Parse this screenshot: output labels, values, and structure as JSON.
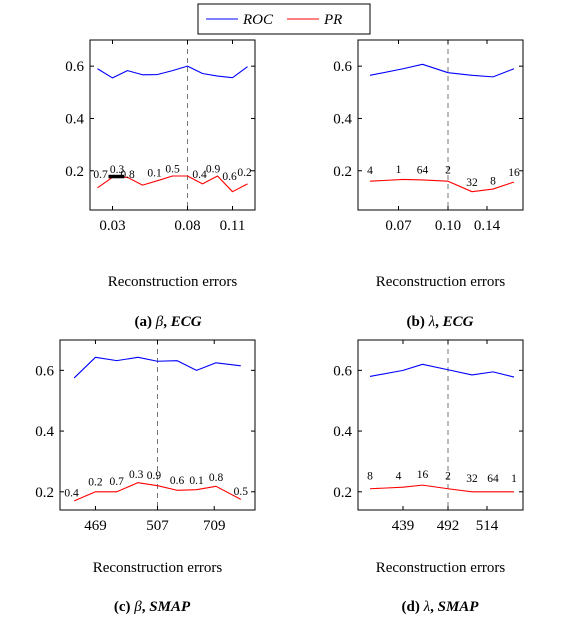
{
  "legend": {
    "entries": [
      {
        "name": "ROC",
        "color": "#0000ff"
      },
      {
        "name": "PR",
        "color": "#ff0000"
      }
    ]
  },
  "chart_data": [
    {
      "type": "line",
      "caption": {
        "tag": "(a)",
        "symbol": "β",
        "sep": ", ",
        "name": "ECG"
      },
      "xlabel": "Reconstruction errors",
      "ylabel": "",
      "xlim": [
        0.015,
        0.125
      ],
      "ylim": [
        0.05,
        0.7
      ],
      "yticks": [
        0.2,
        0.4,
        0.6
      ],
      "yticklabels": [
        "0.2",
        "0.4",
        "0.6"
      ],
      "xticks": [
        0.03,
        0.08,
        0.11
      ],
      "xticklabels": [
        "0.03",
        "0.08",
        "0.11"
      ],
      "dashed_x": 0.08,
      "x": [
        0.02,
        0.03,
        0.04,
        0.05,
        0.06,
        0.07,
        0.08,
        0.09,
        0.1,
        0.11,
        0.12
      ],
      "series": [
        {
          "name": "ROC",
          "values": [
            0.59,
            0.555,
            0.583,
            0.567,
            0.568,
            0.583,
            0.6,
            0.572,
            0.562,
            0.556,
            0.598
          ]
        },
        {
          "name": "PR",
          "values": [
            0.135,
            0.175,
            0.175,
            0.145,
            0.162,
            0.18,
            0.18,
            0.15,
            0.18,
            0.12,
            0.15
          ]
        }
      ],
      "point_labels": [
        "0.7",
        "0.3",
        "0.8",
        "0.1",
        "0.5",
        "0.4",
        "0.9",
        "0.6",
        "0.2"
      ],
      "point_label_x": [
        0.022,
        0.033,
        0.04,
        0.058,
        0.07,
        0.088,
        0.097,
        0.108,
        0.118
      ],
      "point_label_y": [
        0.172,
        0.192,
        0.172,
        0.178,
        0.193,
        0.172,
        0.193,
        0.165,
        0.18
      ],
      "highlight_segment": [
        0.03,
        0.035,
        0.178
      ]
    },
    {
      "type": "line",
      "caption": {
        "tag": "(b)",
        "symbol": "λ",
        "sep": ", ",
        "name": "ECG"
      },
      "xlabel": "Reconstruction errors",
      "ylabel": "",
      "xlim": [
        0,
        1.1
      ],
      "ylim": [
        0.05,
        0.7
      ],
      "yticks": [
        0.2,
        0.4,
        0.6
      ],
      "yticklabels": [
        "0.2",
        "0.4",
        "0.6"
      ],
      "xticks": [
        0.27,
        0.6,
        0.86
      ],
      "xticklabels": [
        "0.07",
        "0.10",
        "0.14"
      ],
      "dashed_x": 0.6,
      "x": [
        0.08,
        0.3,
        0.43,
        0.6,
        0.76,
        0.9,
        1.04
      ],
      "series": [
        {
          "name": "ROC",
          "values": [
            0.565,
            0.59,
            0.607,
            0.575,
            0.565,
            0.559,
            0.59
          ]
        },
        {
          "name": "PR",
          "values": [
            0.16,
            0.167,
            0.165,
            0.16,
            0.12,
            0.13,
            0.157
          ]
        }
      ],
      "point_labels": [
        "4",
        "1",
        "64",
        "2",
        "32",
        "8",
        "16"
      ],
      "point_label_x": [
        0.08,
        0.27,
        0.43,
        0.6,
        0.76,
        0.9,
        1.04
      ],
      "point_label_y": [
        0.188,
        0.192,
        0.19,
        0.19,
        0.142,
        0.148,
        0.18
      ]
    },
    {
      "type": "line",
      "caption": {
        "tag": "(c)",
        "symbol": "β",
        "sep": ", ",
        "name": "SMAP"
      },
      "xlabel": "Reconstruction errors",
      "ylabel": "",
      "xlim": [
        0,
        1.1
      ],
      "ylim": [
        0.14,
        0.7
      ],
      "yticks": [
        0.2,
        0.4,
        0.6
      ],
      "yticklabels": [
        "0.2",
        "0.4",
        "0.6"
      ],
      "xticks": [
        0.2,
        0.55,
        0.87
      ],
      "xticklabels": [
        "469",
        "507",
        "709"
      ],
      "dashed_x": 0.55,
      "x": [
        0.08,
        0.2,
        0.32,
        0.44,
        0.55,
        0.66,
        0.77,
        0.88,
        1.02
      ],
      "series": [
        {
          "name": "ROC",
          "values": [
            0.575,
            0.643,
            0.632,
            0.643,
            0.63,
            0.632,
            0.6,
            0.625,
            0.615
          ]
        },
        {
          "name": "PR",
          "values": [
            0.17,
            0.2,
            0.2,
            0.23,
            0.22,
            0.205,
            0.207,
            0.218,
            0.175
          ]
        }
      ],
      "point_labels": [
        "0.4",
        "0.2",
        "0.7",
        "0.3",
        "0.9",
        "0.6",
        "0.1",
        "0.8",
        "0.5"
      ],
      "point_label_x": [
        0.065,
        0.2,
        0.32,
        0.43,
        0.53,
        0.66,
        0.77,
        0.88,
        1.02
      ],
      "point_label_y": [
        0.185,
        0.22,
        0.222,
        0.245,
        0.242,
        0.225,
        0.225,
        0.235,
        0.19
      ]
    },
    {
      "type": "line",
      "caption": {
        "tag": "(d)",
        "symbol": "λ",
        "sep": ", ",
        "name": "SMAP"
      },
      "xlabel": "Reconstruction errors",
      "ylabel": "",
      "xlim": [
        0,
        1.1
      ],
      "ylim": [
        0.14,
        0.7
      ],
      "yticks": [
        0.2,
        0.4,
        0.6
      ],
      "yticklabels": [
        "0.2",
        "0.4",
        "0.6"
      ],
      "xticks": [
        0.3,
        0.6,
        0.86
      ],
      "xticklabels": [
        "439",
        "492",
        "514"
      ],
      "dashed_x": 0.6,
      "x": [
        0.08,
        0.3,
        0.43,
        0.6,
        0.76,
        0.9,
        1.04
      ],
      "series": [
        {
          "name": "ROC",
          "values": [
            0.58,
            0.6,
            0.62,
            0.602,
            0.585,
            0.595,
            0.578
          ]
        },
        {
          "name": "PR",
          "values": [
            0.21,
            0.215,
            0.222,
            0.21,
            0.2,
            0.2,
            0.2
          ]
        }
      ],
      "point_labels": [
        "8",
        "4",
        "16",
        "2",
        "32",
        "64",
        "1"
      ],
      "point_label_x": [
        0.08,
        0.27,
        0.43,
        0.6,
        0.76,
        0.9,
        1.04
      ],
      "point_label_y": [
        0.24,
        0.24,
        0.245,
        0.24,
        0.232,
        0.232,
        0.232
      ]
    }
  ]
}
